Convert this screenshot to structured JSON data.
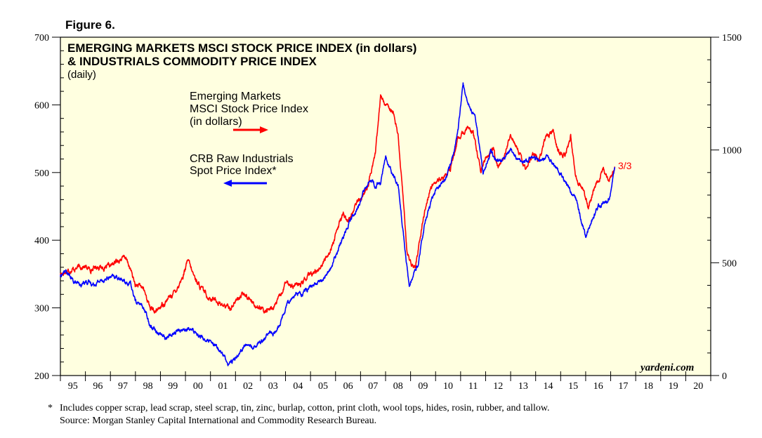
{
  "figure_label": "Figure 6.",
  "chart_data": {
    "type": "line",
    "title": "EMERGING MARKETS MSCI STOCK PRICE INDEX (in dollars)",
    "title_line2": "& INDUSTRIALS COMMODITY PRICE INDEX",
    "subtitle": "(daily)",
    "x_categories": [
      "95",
      "96",
      "97",
      "98",
      "99",
      "00",
      "01",
      "02",
      "03",
      "04",
      "05",
      "06",
      "07",
      "08",
      "09",
      "10",
      "11",
      "12",
      "13",
      "14",
      "15",
      "16",
      "17",
      "18",
      "19",
      "20"
    ],
    "x_start": 1995,
    "x_end": 2021,
    "left_axis": {
      "min": 200,
      "max": 700,
      "ticks": [
        200,
        300,
        400,
        500,
        600,
        700
      ],
      "minor_step": 20
    },
    "right_axis": {
      "min": 0,
      "max": 1500,
      "ticks": [
        0,
        500,
        1000,
        1500
      ],
      "minor_step": 100
    },
    "series": [
      {
        "name": "Emerging Markets MSCI Stock Price Index (in dollars)",
        "axis": "right",
        "color": "#ff0000",
        "points": [
          [
            1995.0,
            450
          ],
          [
            1995.3,
            465
          ],
          [
            1995.6,
            475
          ],
          [
            1995.9,
            485
          ],
          [
            1996.2,
            470
          ],
          [
            1996.5,
            485
          ],
          [
            1996.8,
            475
          ],
          [
            1997.0,
            485
          ],
          [
            1997.3,
            510
          ],
          [
            1997.6,
            525
          ],
          [
            1997.8,
            470
          ],
          [
            1998.0,
            400
          ],
          [
            1998.3,
            390
          ],
          [
            1998.6,
            300
          ],
          [
            1998.8,
            280
          ],
          [
            1999.0,
            305
          ],
          [
            1999.3,
            340
          ],
          [
            1999.6,
            375
          ],
          [
            1999.9,
            440
          ],
          [
            2000.1,
            510
          ],
          [
            2000.3,
            450
          ],
          [
            2000.6,
            390
          ],
          [
            2000.9,
            350
          ],
          [
            2001.2,
            335
          ],
          [
            2001.5,
            310
          ],
          [
            2001.8,
            300
          ],
          [
            2002.0,
            330
          ],
          [
            2002.3,
            360
          ],
          [
            2002.6,
            340
          ],
          [
            2002.9,
            300
          ],
          [
            2003.2,
            285
          ],
          [
            2003.5,
            300
          ],
          [
            2003.8,
            350
          ],
          [
            2004.0,
            410
          ],
          [
            2004.3,
            400
          ],
          [
            2004.6,
            400
          ],
          [
            2004.9,
            440
          ],
          [
            2005.2,
            460
          ],
          [
            2005.5,
            500
          ],
          [
            2005.8,
            560
          ],
          [
            2006.0,
            620
          ],
          [
            2006.3,
            720
          ],
          [
            2006.5,
            680
          ],
          [
            2006.8,
            760
          ],
          [
            2007.0,
            780
          ],
          [
            2007.3,
            840
          ],
          [
            2007.6,
            990
          ],
          [
            2007.8,
            1240
          ],
          [
            2008.0,
            1200
          ],
          [
            2008.3,
            1180
          ],
          [
            2008.5,
            1060
          ],
          [
            2008.7,
            800
          ],
          [
            2008.85,
            550
          ],
          [
            2009.0,
            500
          ],
          [
            2009.2,
            480
          ],
          [
            2009.5,
            700
          ],
          [
            2009.8,
            830
          ],
          [
            2010.0,
            860
          ],
          [
            2010.3,
            870
          ],
          [
            2010.6,
            920
          ],
          [
            2010.9,
            1050
          ],
          [
            2011.0,
            1060
          ],
          [
            2011.3,
            1100
          ],
          [
            2011.5,
            1080
          ],
          [
            2011.8,
            900
          ],
          [
            2012.0,
            960
          ],
          [
            2012.3,
            1000
          ],
          [
            2012.5,
            920
          ],
          [
            2012.8,
            990
          ],
          [
            2013.0,
            1060
          ],
          [
            2013.3,
            1000
          ],
          [
            2013.6,
            920
          ],
          [
            2013.9,
            990
          ],
          [
            2014.1,
            950
          ],
          [
            2014.4,
            1050
          ],
          [
            2014.7,
            1090
          ],
          [
            2014.9,
            990
          ],
          [
            2015.2,
            980
          ],
          [
            2015.4,
            1060
          ],
          [
            2015.6,
            880
          ],
          [
            2015.9,
            830
          ],
          [
            2016.1,
            750
          ],
          [
            2016.4,
            840
          ],
          [
            2016.7,
            910
          ],
          [
            2016.9,
            870
          ],
          [
            2017.0,
            880
          ],
          [
            2017.17,
            925
          ]
        ]
      },
      {
        "name": "CRB Raw Industrials Spot Price Index*",
        "axis": "left",
        "color": "#0000ff",
        "points": [
          [
            1995.0,
            347
          ],
          [
            1995.2,
            355
          ],
          [
            1995.5,
            340
          ],
          [
            1995.8,
            332
          ],
          [
            1996.0,
            340
          ],
          [
            1996.3,
            335
          ],
          [
            1996.6,
            340
          ],
          [
            1997.0,
            345
          ],
          [
            1997.3,
            345
          ],
          [
            1997.6,
            338
          ],
          [
            1997.8,
            335
          ],
          [
            1998.0,
            310
          ],
          [
            1998.3,
            302
          ],
          [
            1998.6,
            275
          ],
          [
            1998.9,
            265
          ],
          [
            1999.2,
            255
          ],
          [
            1999.5,
            262
          ],
          [
            1999.8,
            268
          ],
          [
            2000.1,
            268
          ],
          [
            2000.4,
            265
          ],
          [
            2000.7,
            255
          ],
          [
            2001.0,
            248
          ],
          [
            2001.3,
            240
          ],
          [
            2001.5,
            232
          ],
          [
            2001.7,
            218
          ],
          [
            2001.9,
            222
          ],
          [
            2002.1,
            232
          ],
          [
            2002.4,
            245
          ],
          [
            2002.7,
            243
          ],
          [
            2003.0,
            250
          ],
          [
            2003.3,
            262
          ],
          [
            2003.6,
            262
          ],
          [
            2003.9,
            290
          ],
          [
            2004.1,
            310
          ],
          [
            2004.4,
            320
          ],
          [
            2004.7,
            322
          ],
          [
            2004.9,
            328
          ],
          [
            2005.2,
            335
          ],
          [
            2005.5,
            342
          ],
          [
            2005.8,
            358
          ],
          [
            2006.0,
            375
          ],
          [
            2006.3,
            405
          ],
          [
            2006.6,
            432
          ],
          [
            2006.9,
            448
          ],
          [
            2007.1,
            470
          ],
          [
            2007.4,
            490
          ],
          [
            2007.6,
            480
          ],
          [
            2007.8,
            485
          ],
          [
            2008.0,
            522
          ],
          [
            2008.2,
            505
          ],
          [
            2008.5,
            480
          ],
          [
            2008.8,
            380
          ],
          [
            2008.95,
            330
          ],
          [
            2009.1,
            345
          ],
          [
            2009.3,
            365
          ],
          [
            2009.6,
            430
          ],
          [
            2009.9,
            465
          ],
          [
            2010.1,
            480
          ],
          [
            2010.4,
            490
          ],
          [
            2010.7,
            525
          ],
          [
            2010.9,
            565
          ],
          [
            2011.1,
            630
          ],
          [
            2011.3,
            600
          ],
          [
            2011.6,
            580
          ],
          [
            2011.9,
            500
          ],
          [
            2012.2,
            530
          ],
          [
            2012.5,
            515
          ],
          [
            2012.8,
            522
          ],
          [
            2013.0,
            535
          ],
          [
            2013.3,
            518
          ],
          [
            2013.6,
            515
          ],
          [
            2013.9,
            522
          ],
          [
            2014.2,
            518
          ],
          [
            2014.5,
            522
          ],
          [
            2014.8,
            508
          ],
          [
            2015.0,
            498
          ],
          [
            2015.3,
            480
          ],
          [
            2015.6,
            462
          ],
          [
            2015.9,
            420
          ],
          [
            2016.0,
            402
          ],
          [
            2016.2,
            425
          ],
          [
            2016.5,
            452
          ],
          [
            2016.8,
            455
          ],
          [
            2016.95,
            462
          ],
          [
            2017.17,
            508
          ]
        ]
      }
    ],
    "legend": {
      "red_lines": [
        "Emerging Markets",
        "MSCI Stock Price Index",
        "(in dollars)"
      ],
      "blue_lines": [
        "CRB Raw Industrials",
        "Spot Price Index*"
      ]
    },
    "end_label": "3/3",
    "source_brand": "yardeni.com"
  },
  "footnote_marker": "*",
  "footnote": "Includes copper scrap, lead scrap, steel scrap, tin, zinc, burlap, cotton, print cloth, wool tops, hides, rosin, rubber, and tallow.",
  "source": "Source: Morgan Stanley Capital International and Commodity Research Bureau.",
  "colors": {
    "background": "#ffffe0",
    "red": "#ff0000",
    "blue": "#0000ff"
  }
}
